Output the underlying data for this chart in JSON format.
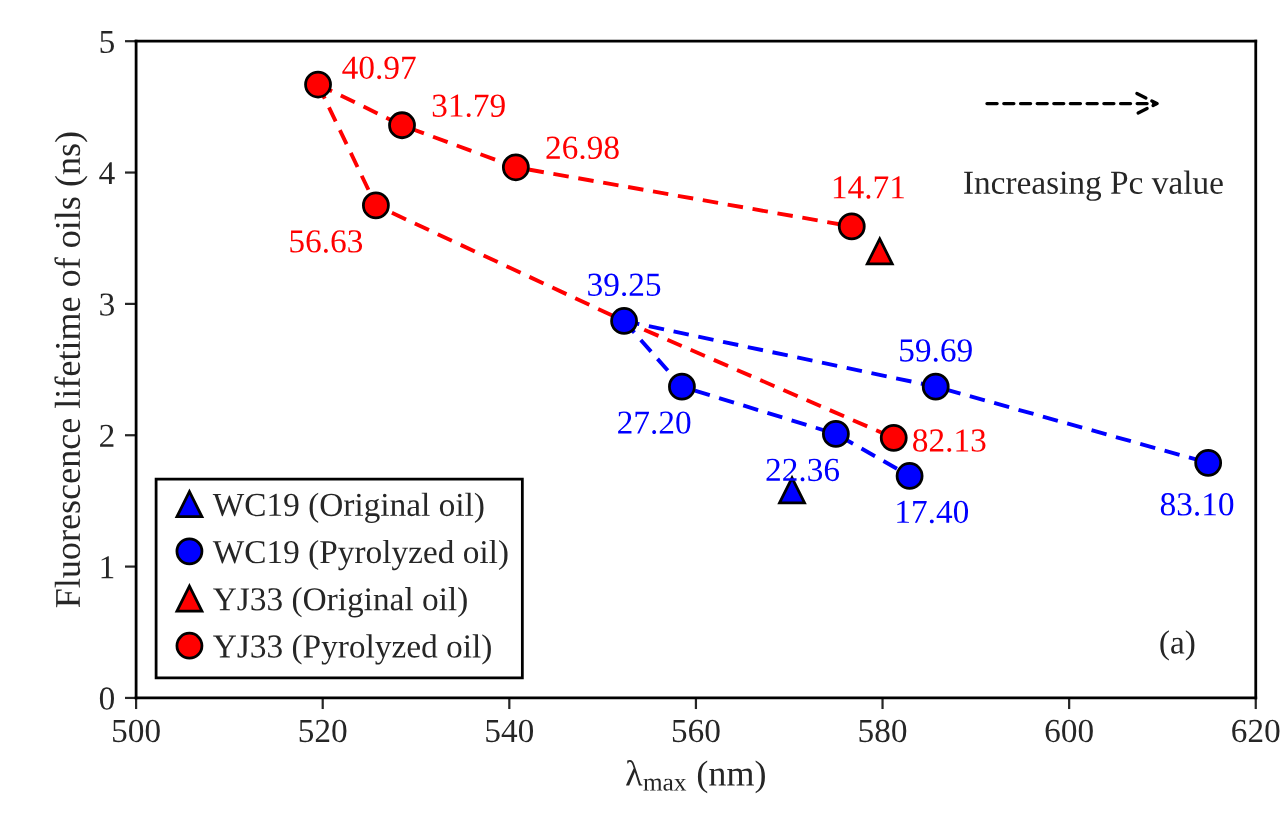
{
  "chart_data": {
    "type": "scatter",
    "xlabel": "λ$_{max}$ (nm)",
    "ylabel": "Fluorescence lifetime of oils (ns)",
    "xlim": [
      500,
      620
    ],
    "xticks": [
      500,
      520,
      540,
      560,
      580,
      600,
      620
    ],
    "ylim": [
      0,
      5
    ],
    "yticks": [
      0,
      1,
      2,
      3,
      4,
      5
    ],
    "grid": false,
    "legend": "bottom left",
    "series": [
      {
        "name": "WC19 (Original oil)",
        "marker": "triangle",
        "color": "#0000ff",
        "x": [
          570.3
        ],
        "values": [
          1.58
        ]
      },
      {
        "name": "WC19 (Pyrolyzed oil)",
        "marker": "circle",
        "color": "#0000ff",
        "x": [
          552.3,
          558.5,
          575.0,
          582.9,
          585.7,
          614.9
        ],
        "values": [
          2.87,
          2.37,
          2.01,
          1.69,
          2.37,
          1.79
        ]
      },
      {
        "name": "YJ33 (Original oil)",
        "marker": "triangle",
        "color": "#ff0000",
        "x": [
          579.7
        ],
        "values": [
          3.4
        ]
      },
      {
        "name": "YJ33 (Pyrolyzed oil)",
        "marker": "circle",
        "color": "#ff0000",
        "x": [
          519.5,
          528.5,
          540.7,
          576.7,
          525.7,
          581.2
        ],
        "values": [
          4.67,
          4.36,
          4.04,
          3.59,
          3.75,
          1.98
        ]
      },
      {
        "type": "line",
        "line_style": "dashed",
        "color": "#ff0000",
        "x": [
          519.5,
          528.5,
          540.7,
          576.7
        ],
        "values": [
          4.67,
          4.36,
          4.04,
          3.59
        ]
      },
      {
        "type": "line",
        "line_style": "dashed",
        "color": "#ff0000",
        "x": [
          519.5,
          525.7,
          552.3,
          581.2
        ],
        "values": [
          4.67,
          3.75,
          2.87,
          1.98
        ]
      },
      {
        "type": "line",
        "line_style": "dashed",
        "color": "#0000ff",
        "x": [
          552.3,
          558.5,
          575.0,
          582.9
        ],
        "values": [
          2.87,
          2.37,
          2.01,
          1.69
        ]
      },
      {
        "type": "line",
        "line_style": "dashed",
        "color": "#0000ff",
        "x": [
          552.3,
          585.7,
          614.9
        ],
        "values": [
          2.87,
          2.37,
          1.79
        ]
      }
    ],
    "annotations": [
      "Increasing Pc value",
      "(a)",
      {
        "text": "39.25",
        "x": 552.3,
        "y": 2.87
      },
      {
        "text": "27.20",
        "x": 558.5,
        "y": 2.37
      },
      {
        "text": "22.36",
        "x": 575.0,
        "y": 2.01
      },
      {
        "text": "17.40",
        "x": 582.9,
        "y": 1.69
      },
      {
        "text": "59.69",
        "x": 585.7,
        "y": 2.37
      },
      {
        "text": "83.10",
        "x": 614.9,
        "y": 1.79
      },
      {
        "text": "40.97",
        "x": 519.5,
        "y": 4.67
      },
      {
        "text": "31.79",
        "x": 528.5,
        "y": 4.36
      },
      {
        "text": "26.98",
        "x": 540.7,
        "y": 4.04
      },
      {
        "text": "14.71",
        "x": 576.7,
        "y": 3.59
      },
      {
        "text": "56.63",
        "x": 525.7,
        "y": 3.75
      },
      {
        "text": "82.13",
        "x": 581.2,
        "y": 1.98
      }
    ]
  }
}
